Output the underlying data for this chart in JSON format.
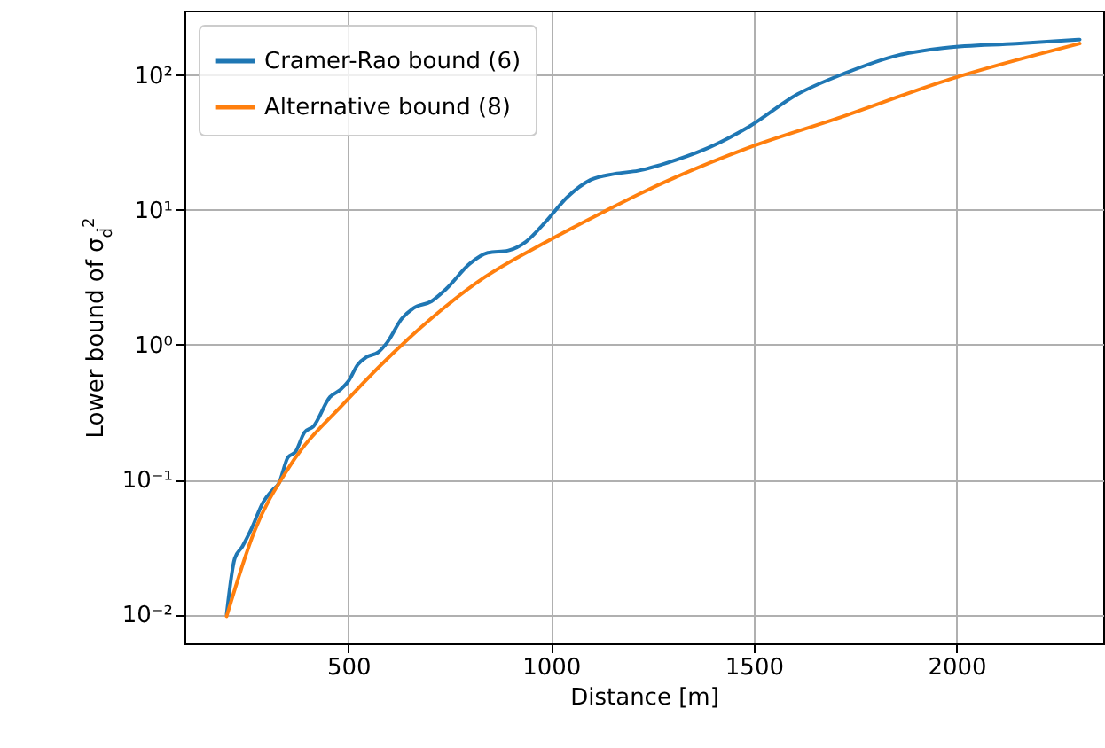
{
  "chart_data": {
    "type": "line",
    "xlabel": "Distance [m]",
    "ylabel": "Lower bound of σ$_{d̂}$$^{2}$",
    "log": "y",
    "grid": true,
    "legend": "top left",
    "line_style": "solid",
    "marker": "none",
    "xlim": [
      96,
      2362
    ],
    "xticks": [
      500,
      1000,
      1500,
      2000
    ],
    "ylim": [
      0.0061,
      300
    ],
    "yticks": [
      {
        "value": 0.01,
        "label": "10⁻²"
      },
      {
        "value": 0.1,
        "label": "10⁻¹"
      },
      {
        "value": 1,
        "label": "10⁰"
      },
      {
        "value": 10,
        "label": "10¹"
      },
      {
        "value": 100,
        "label": "10²"
      }
    ],
    "series": [
      {
        "name": "Cramer-Rao bound (6)",
        "color": "#1f77b4",
        "x": [
          200,
          220,
          239,
          261,
          290,
          312,
          329,
          351,
          370,
          392,
          414,
          455,
          479,
          501,
          523,
          545,
          574,
          596,
          632,
          661,
          705,
          742,
          800,
          844,
          895,
          938,
          989,
          1040,
          1098,
          1157,
          1215,
          1317,
          1390,
          1489,
          1608,
          1725,
          1856,
          1972,
          2147,
          2304
        ],
        "values": [
          0.01,
          0.026,
          0.032,
          0.043,
          0.068,
          0.083,
          0.094,
          0.146,
          0.161,
          0.224,
          0.248,
          0.41,
          0.46,
          0.54,
          0.71,
          0.81,
          0.88,
          1.04,
          1.56,
          1.87,
          2.1,
          2.6,
          4.0,
          4.8,
          5.0,
          5.8,
          8.3,
          12.4,
          16.7,
          18.5,
          19.5,
          23.9,
          29,
          41.5,
          72,
          103,
          140,
          159,
          171,
          183
        ]
      },
      {
        "name": "Alternative bound (8)",
        "color": "#ff7f0e",
        "x": [
          200,
          268,
          355,
          494,
          647,
          836,
          989,
          1128,
          1215,
          1489,
          1709,
          1984,
          2304
        ],
        "values": [
          0.0097,
          0.041,
          0.125,
          0.38,
          1.1,
          3.16,
          5.8,
          9.6,
          13,
          29,
          48,
          93,
          171
        ]
      }
    ]
  }
}
